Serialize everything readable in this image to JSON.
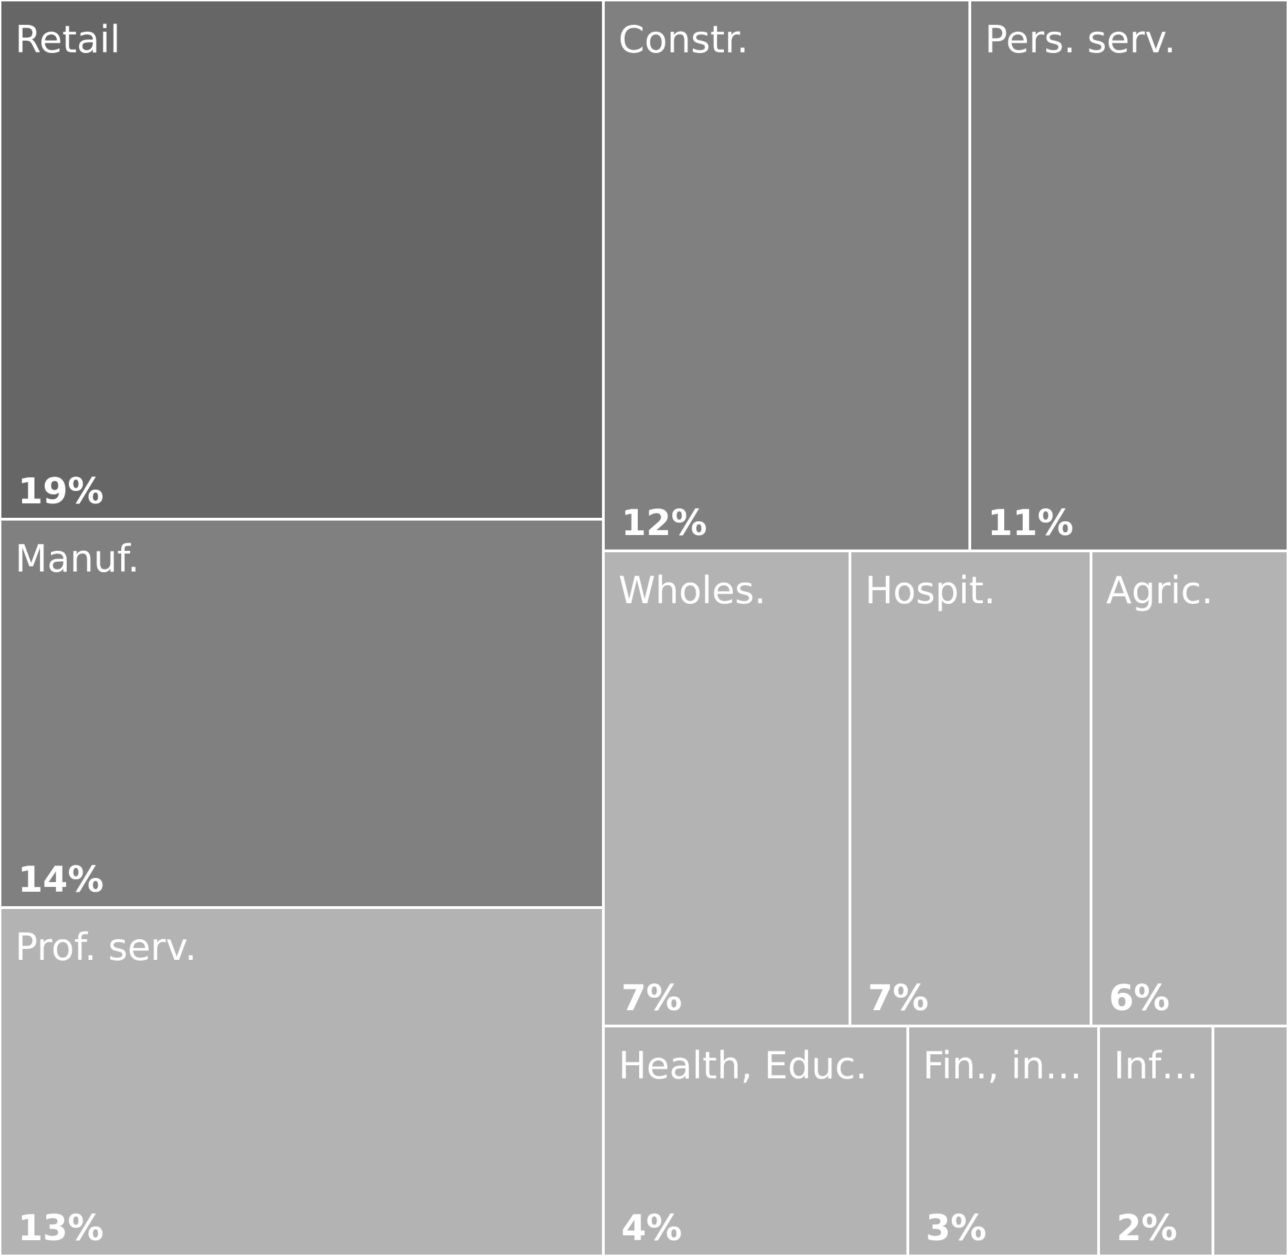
{
  "chart_data": {
    "type": "treemap",
    "tiles": [
      {
        "label": "Retail",
        "value_label": "19%",
        "value": 19,
        "color": "#666666"
      },
      {
        "label": "Manuf.",
        "value_label": "14%",
        "value": 14,
        "color": "#808080"
      },
      {
        "label": "Prof. serv.",
        "value_label": "13%",
        "value": 13,
        "color": "#b3b3b3"
      },
      {
        "label": "Constr.",
        "value_label": "12%",
        "value": 12,
        "color": "#808080"
      },
      {
        "label": "Pers. serv.",
        "value_label": "11%",
        "value": 11,
        "color": "#808080"
      },
      {
        "label": "Wholes.",
        "value_label": "7%",
        "value": 7,
        "color": "#b3b3b3"
      },
      {
        "label": "Hospit.",
        "value_label": "7%",
        "value": 7,
        "color": "#b3b3b3"
      },
      {
        "label": "Agric.",
        "value_label": "6%",
        "value": 6,
        "color": "#b3b3b3"
      },
      {
        "label": "Health, Educ.",
        "value_label": "4%",
        "value": 4,
        "color": "#b3b3b3"
      },
      {
        "label": "Fin., in…",
        "value_label": "3%",
        "value": 3,
        "color": "#b3b3b3"
      },
      {
        "label": "Inf…",
        "value_label": "2%",
        "value": 2,
        "color": "#b3b3b3"
      },
      {
        "label": "",
        "value_label": "",
        "value": 2,
        "color": "#b3b3b3"
      }
    ]
  }
}
